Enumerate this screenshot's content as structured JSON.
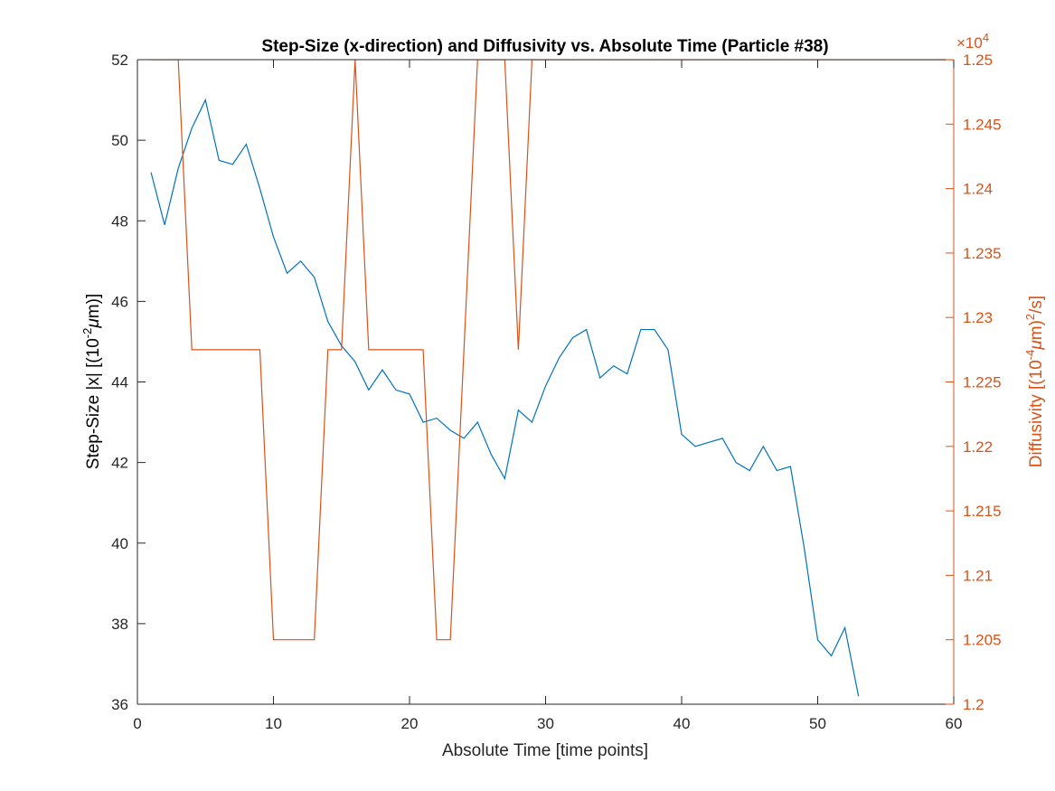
{
  "chart_data": {
    "type": "line",
    "title": "Step-Size (x-direction) and Diffusivity vs. Absolute Time (Particle #38)",
    "xlabel": "Absolute Time [time points]",
    "xlim": [
      0,
      60
    ],
    "xticks": [
      0,
      10,
      20,
      30,
      40,
      50,
      60
    ],
    "xtick_labels": [
      "0",
      "10",
      "20",
      "30",
      "40",
      "50",
      "60"
    ],
    "y_left": {
      "ylabel_parts": {
        "main": "Step-Size |x| [(10",
        "sup": "-2",
        "italic": "μ",
        "tail": "m)]"
      },
      "ylim": [
        36,
        52
      ],
      "ticks": [
        36,
        38,
        40,
        42,
        44,
        46,
        48,
        50,
        52
      ],
      "tick_labels": [
        "36",
        "38",
        "40",
        "42",
        "44",
        "46",
        "48",
        "50",
        "52"
      ],
      "color": "#0072BD"
    },
    "y_right": {
      "ylabel_parts": {
        "main": "Diffusivity [(10",
        "sup": "-4",
        "italic": "μ",
        "tail": "m)",
        "sup2": "2",
        "tail2": "/s]"
      },
      "ylim": [
        1.2,
        1.25
      ],
      "exponent_label": {
        "times": "×10",
        "sup": "4"
      },
      "ticks": [
        1.2,
        1.205,
        1.21,
        1.215,
        1.22,
        1.225,
        1.23,
        1.235,
        1.24,
        1.245,
        1.25
      ],
      "tick_labels": [
        "1.2",
        "1.205",
        "1.21",
        "1.215",
        "1.22",
        "1.225",
        "1.23",
        "1.235",
        "1.24",
        "1.245",
        "1.25"
      ],
      "color": "#D95319"
    },
    "series": [
      {
        "axis": "left",
        "color": "#0072BD",
        "x": [
          1,
          2,
          3,
          4,
          5,
          6,
          7,
          8,
          9,
          10,
          11,
          12,
          13,
          14,
          15,
          16,
          17,
          18,
          19,
          20,
          21,
          22,
          23,
          24,
          25,
          26,
          27,
          28,
          29,
          30,
          31,
          32,
          33,
          34,
          35,
          36,
          37,
          38,
          39,
          40,
          41,
          42,
          43,
          44,
          45,
          46,
          47,
          48,
          49,
          50,
          51,
          52,
          53
        ],
        "y": [
          49.2,
          47.9,
          49.3,
          50.3,
          51.0,
          49.5,
          49.4,
          49.9,
          48.8,
          47.6,
          46.7,
          47.0,
          46.6,
          45.5,
          44.9,
          44.5,
          43.8,
          44.3,
          43.8,
          43.7,
          43.0,
          43.1,
          42.8,
          42.6,
          43.0,
          42.2,
          41.6,
          43.3,
          43.0,
          43.9,
          44.6,
          45.1,
          45.3,
          44.1,
          44.4,
          44.2,
          45.3,
          45.3,
          44.8,
          42.7,
          42.4,
          42.5,
          42.6,
          42.0,
          41.8,
          42.4,
          41.8,
          41.9,
          39.9,
          37.6,
          37.2,
          37.9,
          36.2
        ]
      },
      {
        "axis": "right",
        "color": "#D95319",
        "x": [
          1,
          2,
          3,
          4,
          5,
          6,
          7,
          8,
          9,
          10,
          11,
          12,
          13,
          14,
          15,
          16,
          17,
          18,
          19,
          20,
          21,
          22,
          23,
          24,
          25,
          26,
          27,
          28,
          29,
          30,
          31,
          32,
          33,
          34,
          35,
          36,
          37,
          38,
          39,
          40,
          41,
          42,
          43,
          44,
          45,
          46,
          47,
          48,
          49,
          50,
          51,
          52,
          53,
          54,
          55,
          56,
          57,
          58,
          59,
          60
        ],
        "y": [
          1.25,
          1.25,
          1.25,
          1.2275,
          1.2275,
          1.2275,
          1.2275,
          1.2275,
          1.2275,
          1.205,
          1.205,
          1.205,
          1.205,
          1.2275,
          1.2275,
          1.25,
          1.2275,
          1.2275,
          1.2275,
          1.2275,
          1.2275,
          1.205,
          1.205,
          1.2275,
          1.25,
          1.25,
          1.25,
          1.2275,
          1.25,
          1.25,
          1.25,
          1.25,
          1.25,
          1.25,
          1.25,
          1.25,
          1.25,
          1.25,
          1.25,
          1.25,
          1.25,
          1.25,
          1.25,
          1.25,
          1.25,
          1.25,
          1.25,
          1.25,
          1.25,
          1.25,
          1.25,
          1.25,
          1.25,
          1.25,
          1.25,
          1.25,
          1.25,
          1.25,
          1.25,
          1.25
        ]
      }
    ]
  }
}
